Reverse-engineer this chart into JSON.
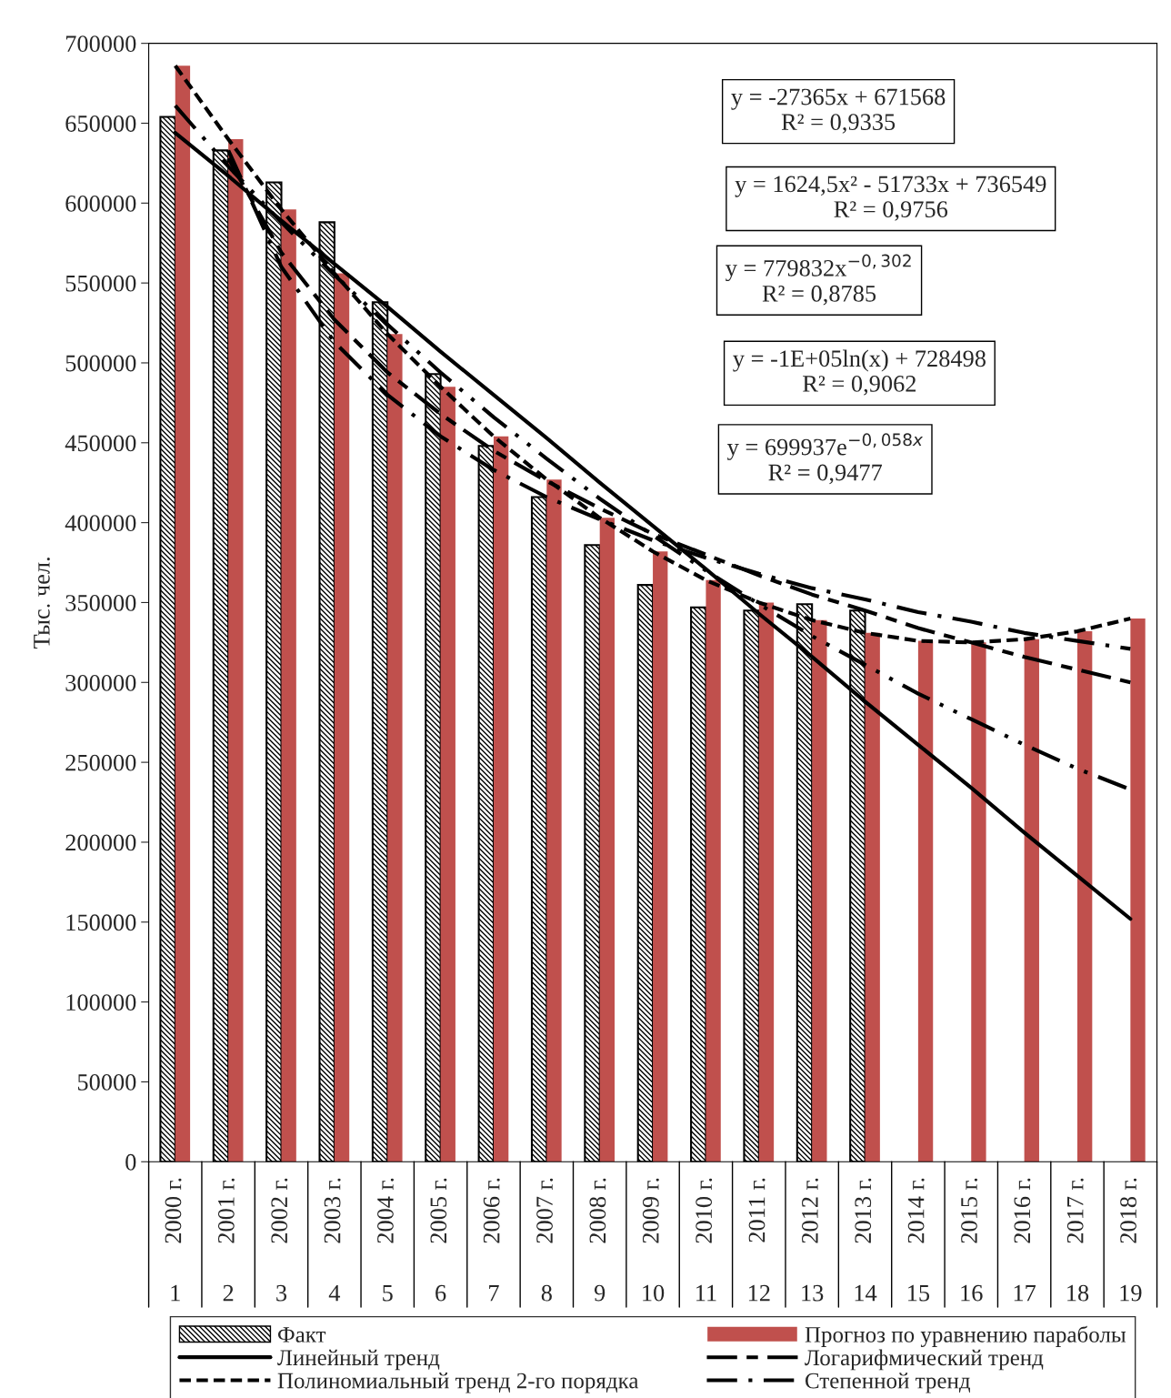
{
  "chart_data": {
    "type": "bar",
    "ylabel": "Тыс. чел.",
    "categories": [
      "2000 г.\n1",
      "2001 г.\n2",
      "2002 г.\n3",
      "2003 г.\n4",
      "2004 г.\n5",
      "2005 г.\n6",
      "2006 г.\n7",
      "2007 г.\n8",
      "2008 г.\n9",
      "2009 г.\n10",
      "2010 г.\n11",
      "2011 г.\n12",
      "2012 г.\n13",
      "2013 г.\n14",
      "2014 г.\n15",
      "2015 г.\n16",
      "2016 г.\n17",
      "2017 г.\n18",
      "2018 г.\n19"
    ],
    "series": [
      {
        "name": "Факт",
        "color": "#000000",
        "values": [
          654000,
          633000,
          613000,
          588000,
          538000,
          493000,
          448000,
          416000,
          386000,
          361000,
          347000,
          345000,
          349000,
          345000,
          null,
          null,
          null,
          null,
          null
        ]
      },
      {
        "name": "Прогноз по уравнению параболы",
        "color": "#c0504d",
        "values": [
          686000,
          640000,
          596000,
          556000,
          518000,
          485000,
          454000,
          427000,
          403000,
          382000,
          364000,
          350000,
          339000,
          331000,
          326000,
          325000,
          327000,
          332000,
          340000
        ]
      },
      {
        "name": "Линейный тренд",
        "type": "line",
        "color": "#000000",
        "line_style": "solid",
        "values": [
          644000,
          617000,
          589000,
          562000,
          535000,
          507000,
          480000,
          453000,
          425000,
          398000,
          371000,
          343000,
          316000,
          288000,
          261000,
          234000,
          206000,
          179000,
          152000
        ]
      },
      {
        "name": "Логарифмический тренд",
        "type": "line",
        "color": "#000000",
        "line_style": "longdash",
        "values": [
          null,
          628000,
          569000,
          527000,
          494000,
          468000,
          445000,
          426000,
          409000,
          393000,
          380000,
          367000,
          355000,
          345000,
          334000,
          325000,
          316000,
          308000,
          300000
        ]
      },
      {
        "name": "Полиномиальный тренд 2-го порядка",
        "type": "line",
        "color": "#000000",
        "line_style": "dashed",
        "values": [
          686000,
          640000,
          596000,
          556000,
          518000,
          485000,
          454000,
          427000,
          403000,
          382000,
          364000,
          350000,
          339000,
          331000,
          326000,
          325000,
          327000,
          332000,
          340000
        ]
      },
      {
        "name": "Степенной тренд",
        "type": "line",
        "color": "#000000",
        "line_style": "dashdot",
        "values": [
          null,
          633000,
          560000,
          513000,
          480000,
          454000,
          433000,
          416000,
          402000,
          389000,
          378000,
          368000,
          359000,
          352000,
          344000,
          338000,
          331000,
          326000,
          321000
        ]
      },
      {
        "type": "line",
        "color": "#000000",
        "line_style": "dashdotdot",
        "values": [
          661000,
          623000,
          588000,
          555000,
          524000,
          494000,
          466000,
          440000,
          415000,
          392000,
          370000,
          349000,
          329000,
          311000,
          293000,
          277000,
          261000,
          246000,
          233000
        ]
      }
    ],
    "ylim": [
      0,
      700000
    ],
    "yticks": [
      0,
      50000,
      100000,
      150000,
      200000,
      250000,
      300000,
      350000,
      400000,
      450000,
      500000,
      550000,
      600000,
      650000,
      700000
    ],
    "grid": false,
    "legend": "bottom",
    "annotations": [
      "y = -27365x + 671568\nR² = 0,9335",
      "y = 1624,5x² - 51733x + 736549\nR² = 0,9756",
      "y = 779832x$^{−0,302}$\nR² = 0,8785",
      "y = -1E+05ln(x) + 728498\nR² = 0,9062",
      "y = 699937e$^{−0,058x}$\nR² = 0,9477"
    ]
  }
}
